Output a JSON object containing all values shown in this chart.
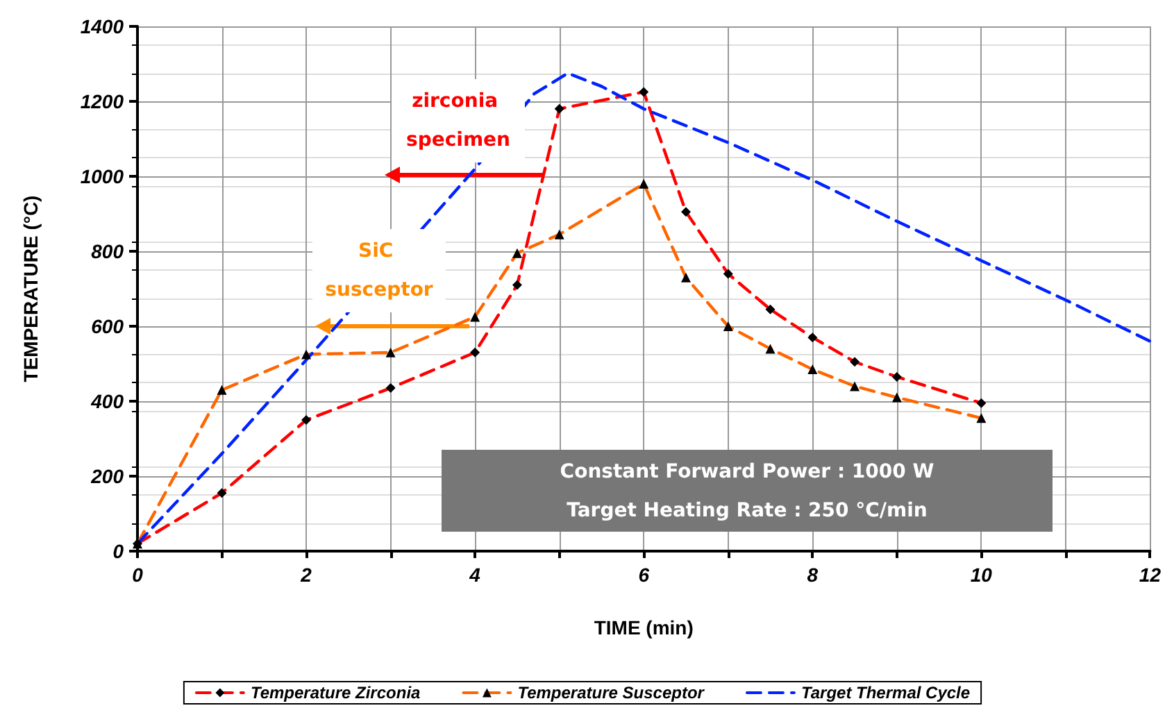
{
  "chart_data": {
    "type": "line",
    "xlabel": "TIME (min)",
    "ylabel": "TEMPERATURE (°C)",
    "xlim": [
      0,
      12
    ],
    "xticks": [
      0,
      {
        "value": 1,
        "label": null
      },
      2,
      {
        "value": 3,
        "label": null
      },
      4,
      {
        "value": 5,
        "label": null
      },
      6,
      {
        "value": 7,
        "label": null
      },
      8,
      {
        "value": 9,
        "label": null
      },
      10,
      {
        "value": 11,
        "label": null
      },
      12
    ],
    "ylim": [
      0,
      1400
    ],
    "yticks": [
      0,
      200,
      400,
      600,
      800,
      1000,
      1200,
      1400
    ],
    "grid": true,
    "legend": "bottom",
    "line_style": "dashed",
    "series": [
      {
        "name": "Temperature Zirconia",
        "color": "#ff0000",
        "marker": "diamond",
        "x": [
          0,
          1,
          2,
          3,
          4,
          4.5,
          5,
          6,
          6.5,
          7,
          7.5,
          8,
          8.5,
          9,
          10
        ],
        "values": [
          20,
          155,
          350,
          435,
          530,
          710,
          1180,
          1225,
          905,
          740,
          645,
          570,
          505,
          465,
          395
        ]
      },
      {
        "name": "Temperature Susceptor",
        "color": "#ff6600",
        "marker": "triangle",
        "x": [
          0,
          1,
          2,
          3,
          4,
          4.5,
          5,
          6,
          6.5,
          7,
          7.5,
          8,
          8.5,
          9,
          10
        ],
        "values": [
          20,
          430,
          525,
          530,
          625,
          795,
          845,
          980,
          730,
          600,
          540,
          485,
          440,
          410,
          355
        ]
      },
      {
        "name": "Target Thermal Cycle",
        "color": "#0022ff",
        "marker": "none",
        "x": [
          0,
          1,
          2,
          4,
          4.7,
          5.1,
          5.5,
          6,
          7,
          8,
          9,
          10,
          11,
          12
        ],
        "values": [
          20,
          260,
          510,
          1020,
          1220,
          1275,
          1240,
          1180,
          1090,
          990,
          880,
          775,
          670,
          560
        ]
      }
    ],
    "annotations": [
      "zirconia specimen",
      "SiC susceptor",
      "Constant Forward Power : 1000 W",
      "Target Heating Rate : 250 °C/min"
    ]
  }
}
